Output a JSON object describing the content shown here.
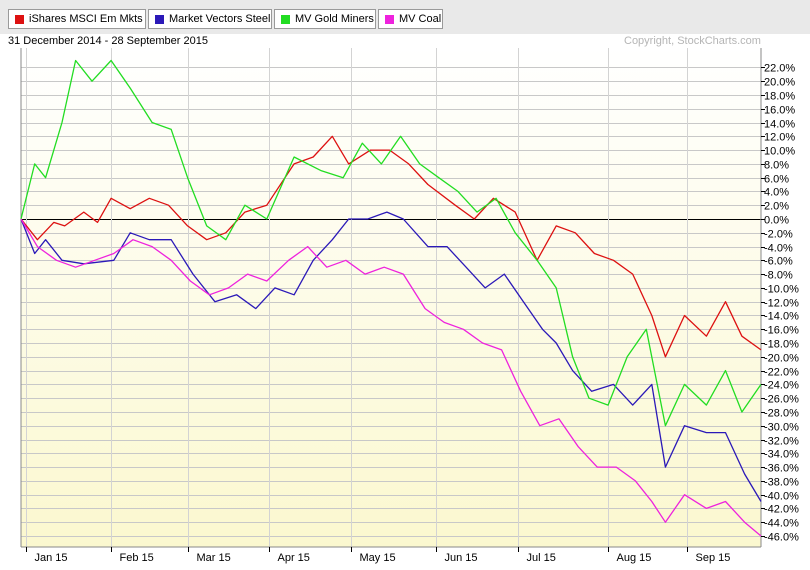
{
  "legend": [
    {
      "name": "iShares MSCI Em Mkts",
      "color": "#dd1111"
    },
    {
      "name": "Market Vectors Steel",
      "color": "#2b19b8"
    },
    {
      "name": "MV Gold Miners",
      "color": "#22dd22"
    },
    {
      "name": "MV Coal",
      "color": "#ee22dd"
    }
  ],
  "header": {
    "date_range": "31 December 2014 - 28 September 2015",
    "copyright": "Copyright, StockCharts.com"
  },
  "chart_data": {
    "type": "line",
    "title": "",
    "xlabel": "",
    "ylabel": "",
    "y_axis_side": "right",
    "ylim": [
      -48,
      25
    ],
    "grid": true,
    "legend_placement": "top",
    "x_range": [
      "2014-12-31",
      "2015-09-28"
    ],
    "x_ticks": [
      {
        "date": "2015-01-02",
        "label": "Jan 15"
      },
      {
        "date": "2015-02-02",
        "label": "Feb 15"
      },
      {
        "date": "2015-03-02",
        "label": "Mar 15"
      },
      {
        "date": "2015-04-01",
        "label": "Apr 15"
      },
      {
        "date": "2015-05-01",
        "label": "May 15"
      },
      {
        "date": "2015-06-01",
        "label": "Jun 15"
      },
      {
        "date": "2015-07-01",
        "label": "Jul 15"
      },
      {
        "date": "2015-08-03",
        "label": "Aug 15"
      },
      {
        "date": "2015-09-01",
        "label": "Sep 15"
      }
    ],
    "y_ticks": [
      {
        "value": 22,
        "label": "22.0%"
      },
      {
        "value": 20,
        "label": "20.0%"
      },
      {
        "value": 18,
        "label": "18.0%"
      },
      {
        "value": 16,
        "label": "16.0%"
      },
      {
        "value": 14,
        "label": "14.0%"
      },
      {
        "value": 12,
        "label": "12.0%"
      },
      {
        "value": 10,
        "label": "10.0%"
      },
      {
        "value": 8,
        "label": "8.0%"
      },
      {
        "value": 6,
        "label": "6.0%"
      },
      {
        "value": 4,
        "label": "4.0%"
      },
      {
        "value": 2,
        "label": "2.0%"
      },
      {
        "value": 0,
        "label": "0.0%"
      },
      {
        "value": -2,
        "label": "-2.0%"
      },
      {
        "value": -4,
        "label": "-4.0%"
      },
      {
        "value": -6,
        "label": "-6.0%"
      },
      {
        "value": -8,
        "label": "-8.0%"
      },
      {
        "value": -10,
        "label": "-10.0%"
      },
      {
        "value": -12,
        "label": "-12.0%"
      },
      {
        "value": -14,
        "label": "-14.0%"
      },
      {
        "value": -16,
        "label": "-16.0%"
      },
      {
        "value": -18,
        "label": "-18.0%"
      },
      {
        "value": -20,
        "label": "-20.0%"
      },
      {
        "value": -22,
        "label": "-22.0%"
      },
      {
        "value": -24,
        "label": "-24.0%"
      },
      {
        "value": -26,
        "label": "-26.0%"
      },
      {
        "value": -28,
        "label": "-28.0%"
      },
      {
        "value": -30,
        "label": "-30.0%"
      },
      {
        "value": -32,
        "label": "-32.0%"
      },
      {
        "value": -34,
        "label": "-34.0%"
      },
      {
        "value": -36,
        "label": "-36.0%"
      },
      {
        "value": -38,
        "label": "-38.0%"
      },
      {
        "value": -40,
        "label": "-40.0%"
      },
      {
        "value": -42,
        "label": "-42.0%"
      },
      {
        "value": -44,
        "label": "-44.0%"
      },
      {
        "value": -46,
        "label": "-46.0%"
      }
    ],
    "series": [
      {
        "name": "iShares MSCI Em Mkts",
        "color": "#dd1111",
        "points": [
          [
            "2014-12-31",
            0
          ],
          [
            "2015-01-06",
            -3
          ],
          [
            "2015-01-12",
            -0.5
          ],
          [
            "2015-01-16",
            -1
          ],
          [
            "2015-01-23",
            1
          ],
          [
            "2015-01-28",
            -0.5
          ],
          [
            "2015-02-02",
            3
          ],
          [
            "2015-02-09",
            1.5
          ],
          [
            "2015-02-16",
            3
          ],
          [
            "2015-02-23",
            2
          ],
          [
            "2015-03-02",
            -1
          ],
          [
            "2015-03-09",
            -3
          ],
          [
            "2015-03-16",
            -2
          ],
          [
            "2015-03-23",
            1
          ],
          [
            "2015-03-31",
            2
          ],
          [
            "2015-04-10",
            8
          ],
          [
            "2015-04-17",
            9
          ],
          [
            "2015-04-24",
            12
          ],
          [
            "2015-04-30",
            8
          ],
          [
            "2015-05-08",
            10
          ],
          [
            "2015-05-15",
            10
          ],
          [
            "2015-05-22",
            8
          ],
          [
            "2015-05-29",
            5
          ],
          [
            "2015-06-08",
            2
          ],
          [
            "2015-06-15",
            0
          ],
          [
            "2015-06-22",
            3
          ],
          [
            "2015-06-30",
            1
          ],
          [
            "2015-07-08",
            -6
          ],
          [
            "2015-07-15",
            -1
          ],
          [
            "2015-07-22",
            -2
          ],
          [
            "2015-07-29",
            -5
          ],
          [
            "2015-08-05",
            -6
          ],
          [
            "2015-08-12",
            -8
          ],
          [
            "2015-08-19",
            -14
          ],
          [
            "2015-08-24",
            -20
          ],
          [
            "2015-08-31",
            -14
          ],
          [
            "2015-09-08",
            -17
          ],
          [
            "2015-09-15",
            -12
          ],
          [
            "2015-09-21",
            -17
          ],
          [
            "2015-09-28",
            -19
          ]
        ]
      },
      {
        "name": "Market Vectors Steel",
        "color": "#2b19b8",
        "points": [
          [
            "2014-12-31",
            0
          ],
          [
            "2015-01-05",
            -5
          ],
          [
            "2015-01-09",
            -3
          ],
          [
            "2015-01-15",
            -6
          ],
          [
            "2015-01-23",
            -6.5
          ],
          [
            "2015-02-03",
            -6
          ],
          [
            "2015-02-09",
            -2
          ],
          [
            "2015-02-16",
            -3
          ],
          [
            "2015-02-24",
            -3
          ],
          [
            "2015-03-04",
            -8
          ],
          [
            "2015-03-12",
            -12
          ],
          [
            "2015-03-20",
            -11
          ],
          [
            "2015-03-27",
            -13
          ],
          [
            "2015-04-03",
            -10
          ],
          [
            "2015-04-10",
            -11
          ],
          [
            "2015-04-17",
            -6
          ],
          [
            "2015-04-24",
            -3
          ],
          [
            "2015-04-30",
            0
          ],
          [
            "2015-05-07",
            0
          ],
          [
            "2015-05-14",
            1
          ],
          [
            "2015-05-20",
            0
          ],
          [
            "2015-05-29",
            -4
          ],
          [
            "2015-06-05",
            -4
          ],
          [
            "2015-06-12",
            -7
          ],
          [
            "2015-06-19",
            -10
          ],
          [
            "2015-06-26",
            -8
          ],
          [
            "2015-07-03",
            -12
          ],
          [
            "2015-07-10",
            -16
          ],
          [
            "2015-07-15",
            -18
          ],
          [
            "2015-07-21",
            -22
          ],
          [
            "2015-07-28",
            -25
          ],
          [
            "2015-08-05",
            -24
          ],
          [
            "2015-08-12",
            -27
          ],
          [
            "2015-08-19",
            -24
          ],
          [
            "2015-08-24",
            -36
          ],
          [
            "2015-08-31",
            -30
          ],
          [
            "2015-09-08",
            -31
          ],
          [
            "2015-09-15",
            -31
          ],
          [
            "2015-09-22",
            -37
          ],
          [
            "2015-09-28",
            -41
          ]
        ]
      },
      {
        "name": "MV Gold Miners",
        "color": "#22dd22",
        "points": [
          [
            "2014-12-31",
            0
          ],
          [
            "2015-01-05",
            8
          ],
          [
            "2015-01-09",
            6
          ],
          [
            "2015-01-15",
            14
          ],
          [
            "2015-01-20",
            23
          ],
          [
            "2015-01-26",
            20
          ],
          [
            "2015-02-02",
            23
          ],
          [
            "2015-02-09",
            19
          ],
          [
            "2015-02-17",
            14
          ],
          [
            "2015-02-24",
            13
          ],
          [
            "2015-03-02",
            6
          ],
          [
            "2015-03-09",
            -1
          ],
          [
            "2015-03-16",
            -3
          ],
          [
            "2015-03-23",
            2
          ],
          [
            "2015-03-31",
            0
          ],
          [
            "2015-04-10",
            9
          ],
          [
            "2015-04-20",
            7
          ],
          [
            "2015-04-28",
            6
          ],
          [
            "2015-05-05",
            11
          ],
          [
            "2015-05-12",
            8
          ],
          [
            "2015-05-19",
            12
          ],
          [
            "2015-05-26",
            8
          ],
          [
            "2015-06-02",
            6
          ],
          [
            "2015-06-09",
            4
          ],
          [
            "2015-06-16",
            1
          ],
          [
            "2015-06-23",
            3
          ],
          [
            "2015-06-30",
            -2
          ],
          [
            "2015-07-08",
            -6
          ],
          [
            "2015-07-15",
            -10
          ],
          [
            "2015-07-21",
            -20
          ],
          [
            "2015-07-27",
            -26
          ],
          [
            "2015-08-03",
            -27
          ],
          [
            "2015-08-10",
            -20
          ],
          [
            "2015-08-17",
            -16
          ],
          [
            "2015-08-24",
            -30
          ],
          [
            "2015-08-31",
            -24
          ],
          [
            "2015-09-08",
            -27
          ],
          [
            "2015-09-15",
            -22
          ],
          [
            "2015-09-21",
            -28
          ],
          [
            "2015-09-28",
            -24
          ]
        ]
      },
      {
        "name": "MV Coal",
        "color": "#ee22dd",
        "points": [
          [
            "2014-12-31",
            0
          ],
          [
            "2015-01-06",
            -4
          ],
          [
            "2015-01-13",
            -6
          ],
          [
            "2015-01-20",
            -7
          ],
          [
            "2015-01-27",
            -6
          ],
          [
            "2015-02-03",
            -5
          ],
          [
            "2015-02-10",
            -3
          ],
          [
            "2015-02-17",
            -4
          ],
          [
            "2015-02-24",
            -6
          ],
          [
            "2015-03-03",
            -9
          ],
          [
            "2015-03-10",
            -11
          ],
          [
            "2015-03-17",
            -10
          ],
          [
            "2015-03-24",
            -8
          ],
          [
            "2015-03-31",
            -9
          ],
          [
            "2015-04-08",
            -6
          ],
          [
            "2015-04-15",
            -4
          ],
          [
            "2015-04-22",
            -7
          ],
          [
            "2015-04-29",
            -6
          ],
          [
            "2015-05-06",
            -8
          ],
          [
            "2015-05-13",
            -7
          ],
          [
            "2015-05-20",
            -8
          ],
          [
            "2015-05-28",
            -13
          ],
          [
            "2015-06-04",
            -15
          ],
          [
            "2015-06-11",
            -16
          ],
          [
            "2015-06-18",
            -18
          ],
          [
            "2015-06-25",
            -19
          ],
          [
            "2015-07-02",
            -25
          ],
          [
            "2015-07-09",
            -30
          ],
          [
            "2015-07-16",
            -29
          ],
          [
            "2015-07-23",
            -33
          ],
          [
            "2015-07-30",
            -36
          ],
          [
            "2015-08-06",
            -36
          ],
          [
            "2015-08-13",
            -38
          ],
          [
            "2015-08-19",
            -41
          ],
          [
            "2015-08-24",
            -44
          ],
          [
            "2015-08-31",
            -40
          ],
          [
            "2015-09-08",
            -42
          ],
          [
            "2015-09-15",
            -41
          ],
          [
            "2015-09-22",
            -44
          ],
          [
            "2015-09-28",
            -46
          ]
        ]
      }
    ]
  }
}
